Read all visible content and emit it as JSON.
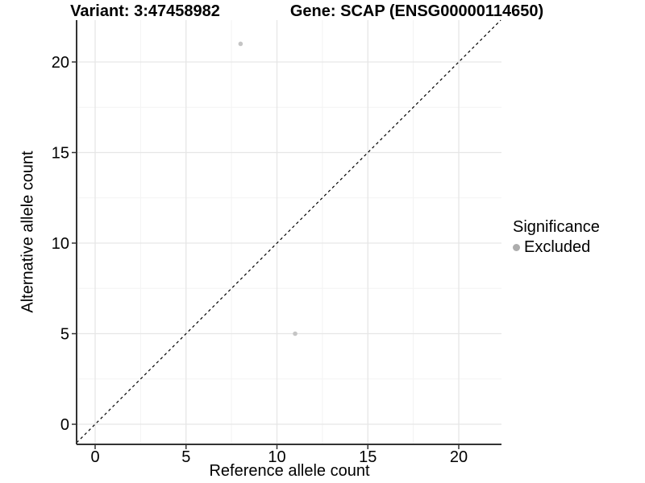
{
  "header": {
    "title_left": "Variant: 3:47458982",
    "title_right": "Gene: SCAP (ENSG00000114650)"
  },
  "legend": {
    "title": "Significance",
    "items": [
      {
        "label": "Excluded",
        "color": "#adadad"
      }
    ],
    "position": "right"
  },
  "chart_data": {
    "type": "scatter",
    "title": "Variant: 3:47458982  /  Gene: SCAP (ENSG00000114650)",
    "xlabel": "Reference allele count",
    "ylabel": "Alternative allele count",
    "xlim": [
      -1.02,
      22.35
    ],
    "ylim": [
      -1.11,
      22.31
    ],
    "x_ticks": [
      0,
      5,
      10,
      15,
      20
    ],
    "y_ticks": [
      0,
      5,
      10,
      15,
      20
    ],
    "x_minor_ticks": [
      2.5,
      7.5,
      12.5,
      17.5
    ],
    "y_minor_ticks": [
      2.5,
      7.5,
      12.5,
      17.5
    ],
    "grid": true,
    "legend_position": "right",
    "series": [
      {
        "name": "Excluded",
        "color": "#c5c5c5",
        "points": [
          {
            "x": 8,
            "y": 21
          },
          {
            "x": 11,
            "y": 5
          }
        ]
      }
    ],
    "reference_line": {
      "type": "identity",
      "equation": "y = x",
      "style": "dashed",
      "color": "#000000"
    }
  },
  "colors": {
    "background": "#ffffff",
    "grid_major": "#e6e6e6",
    "grid_minor": "#f3f3f3",
    "axis_line": "#333333",
    "tick_mark": "#333333",
    "tick_label": "#1a1a1a",
    "point": "#c5c5c5",
    "legend_point": "#adadad",
    "reference_line": "#000000"
  }
}
